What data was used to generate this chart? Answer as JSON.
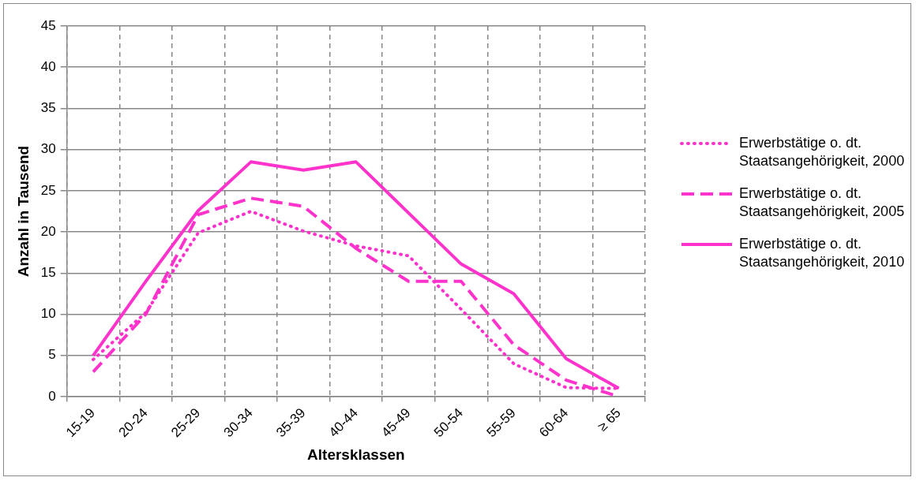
{
  "chart_data": {
    "type": "line",
    "xlabel": "Altersklassen",
    "ylabel": "Anzahl in Tausend",
    "categories": [
      "15-19",
      "20-24",
      "25-29",
      "30-34",
      "35-39",
      "40-44",
      "45-49",
      "50-54",
      "55-59",
      "60-64",
      "≥ 65"
    ],
    "series": [
      {
        "name": "Erwerbstätige o. dt. Staatsangehörigkeit, 2000",
        "color": "#ff33cc",
        "line_style": "dotted",
        "values": [
          4.5,
          10.2,
          19.9,
          22.5,
          20.1,
          18.3,
          17.1,
          10.6,
          4.0,
          1.1,
          1.0
        ]
      },
      {
        "name": "Erwerbstätige o. dt. Staatsangehörigkeit, 2005",
        "color": "#ff33cc",
        "line_style": "dashed",
        "values": [
          3.0,
          10.0,
          22.1,
          24.1,
          23.1,
          18.0,
          14.0,
          14.0,
          6.3,
          2.0,
          0
        ]
      },
      {
        "name": "Erwerbstätige o. dt. Staatsangehörigkeit, 2010",
        "color": "#ff33cc",
        "line_style": "solid",
        "values": [
          5.0,
          14.0,
          22.6,
          28.5,
          27.5,
          28.5,
          22.3,
          16.1,
          12.5,
          4.6,
          1.0
        ]
      }
    ],
    "ylim": [
      0,
      45
    ],
    "yticks": [
      0,
      5,
      10,
      15,
      20,
      25,
      30,
      35,
      40,
      45
    ],
    "grid": true,
    "legend": "right",
    "marker": "none"
  }
}
